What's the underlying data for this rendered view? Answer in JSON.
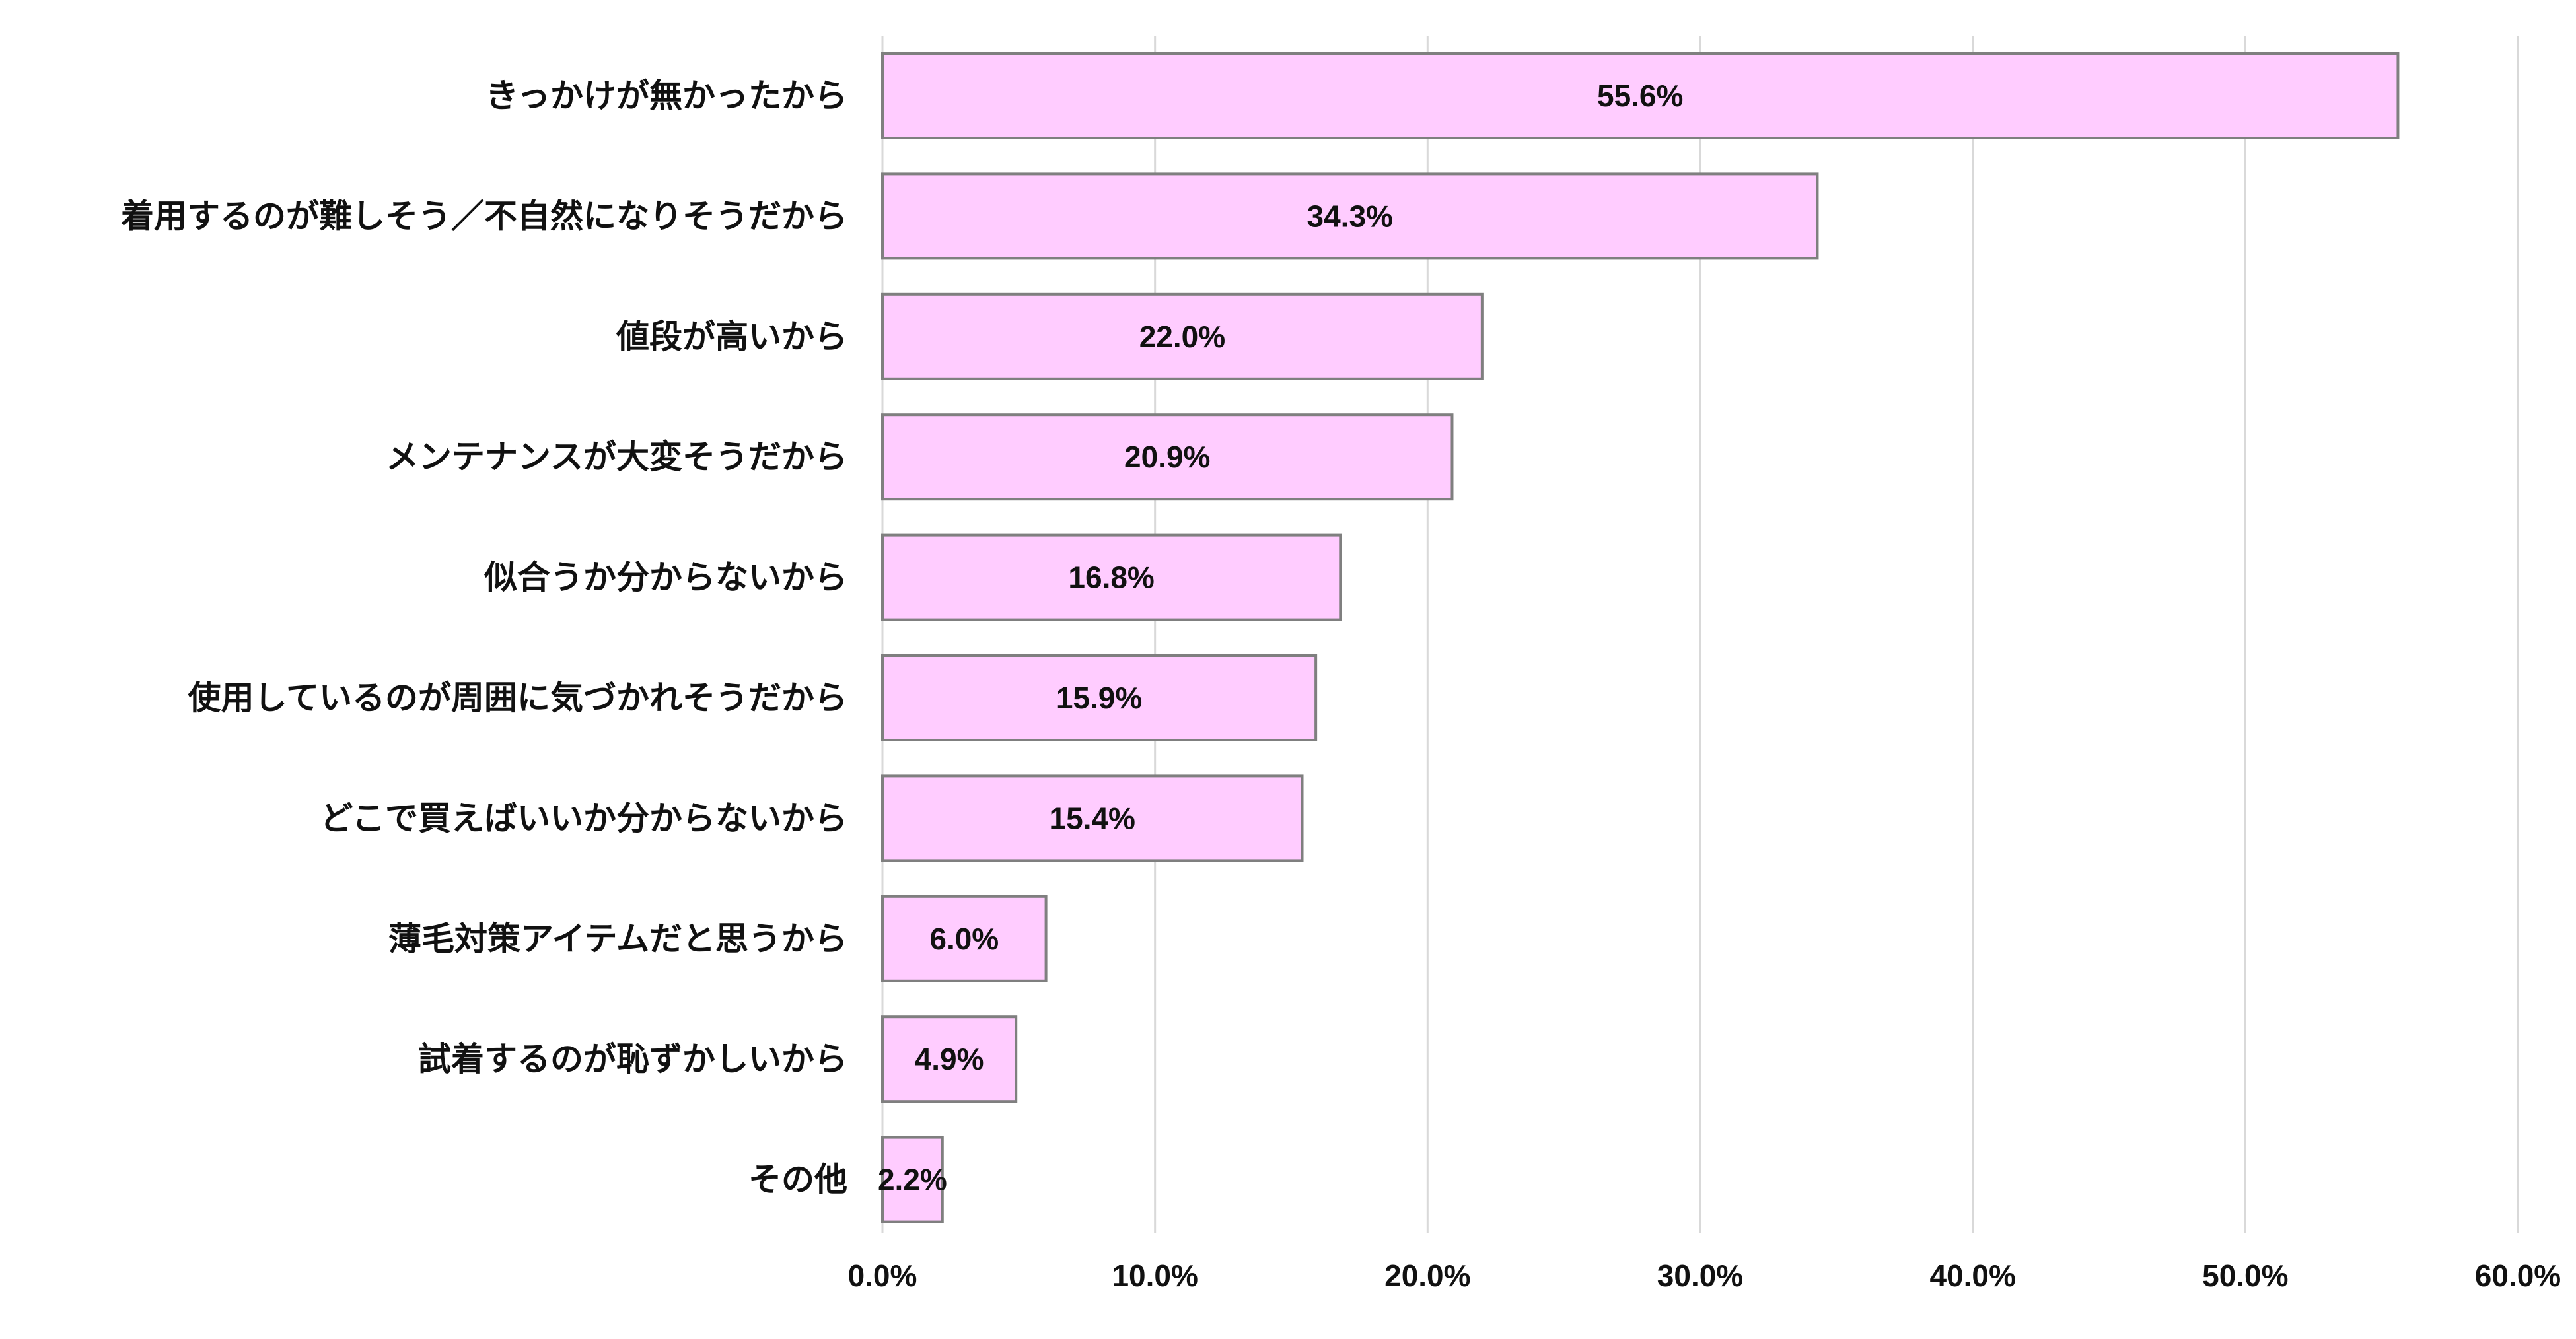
{
  "chart_data": {
    "type": "bar",
    "orientation": "horizontal",
    "categories": [
      "きっかけが無かったから",
      "着用するのが難しそう／不自然になりそうだから",
      "値段が高いから",
      "メンテナンスが大変そうだから",
      "似合うか分からないから",
      "使用しているのが周囲に気づかれそうだから",
      "どこで買えばいいか分からないから",
      "薄毛対策アイテムだと思うから",
      "試着するのが恥ずかしいから",
      "その他"
    ],
    "values": [
      55.6,
      34.3,
      22.0,
      20.9,
      16.8,
      15.9,
      15.4,
      6.0,
      4.9,
      2.2
    ],
    "data_labels": [
      "55.6%",
      "34.3%",
      "22.0%",
      "20.9%",
      "16.8%",
      "15.9%",
      "15.4%",
      "6.0%",
      "4.9%",
      "2.2%"
    ],
    "xlim": [
      0,
      60
    ],
    "x_ticks": [
      0,
      10,
      20,
      30,
      40,
      50,
      60
    ],
    "x_tick_labels": [
      "0.0%",
      "10.0%",
      "20.0%",
      "30.0%",
      "40.0%",
      "50.0%",
      "60.0%"
    ],
    "title": "",
    "xlabel": "",
    "ylabel": "",
    "grid": "vertical",
    "legend": "none",
    "bar_color": "#ffccff",
    "bar_border_color": "#7f7f7f",
    "grid_color": "#d9d9d9"
  }
}
